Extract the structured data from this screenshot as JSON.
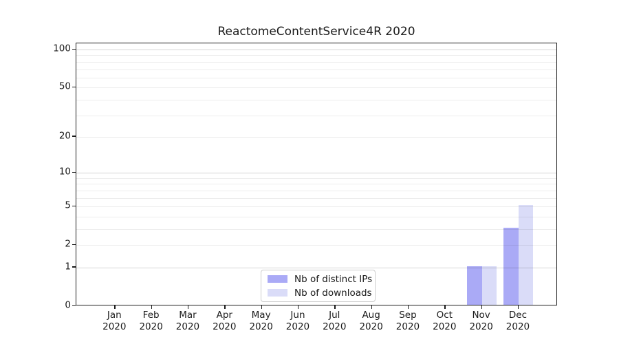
{
  "chart_data": {
    "type": "bar",
    "title": "ReactomeContentService4R 2020",
    "xlabel": "",
    "ylabel": "",
    "categories": [
      "Jan",
      "Feb",
      "Mar",
      "Apr",
      "May",
      "Jun",
      "Jul",
      "Aug",
      "Sep",
      "Oct",
      "Nov",
      "Dec"
    ],
    "category_year": "2020",
    "series": [
      {
        "name": "Nb of distinct IPs",
        "color": "#aaaaf6",
        "values": [
          0,
          0,
          0,
          0,
          0,
          0,
          0,
          0,
          0,
          0,
          1,
          3
        ]
      },
      {
        "name": "Nb of downloads",
        "color": "#dadcf8",
        "values": [
          0,
          0,
          0,
          0,
          0,
          0,
          0,
          0,
          0,
          0,
          1,
          5
        ]
      }
    ],
    "y_axis": {
      "scale": "log1p",
      "ylim": [
        0,
        112
      ],
      "ticks": [
        {
          "v": 0,
          "label": "0"
        },
        {
          "v": 1,
          "label": "1"
        },
        {
          "v": 2,
          "label": "2"
        },
        {
          "v": 5,
          "label": "5"
        },
        {
          "v": 10,
          "label": "10"
        },
        {
          "v": 20,
          "label": "20"
        },
        {
          "v": 50,
          "label": "50"
        },
        {
          "v": 100,
          "label": "100"
        }
      ],
      "major_gridlines": [
        1,
        10,
        100
      ],
      "minor_gridlines": [
        2,
        3,
        4,
        5,
        6,
        7,
        8,
        9,
        20,
        30,
        40,
        50,
        60,
        70,
        80,
        90
      ]
    },
    "grid": "horizontal",
    "legend": {
      "position": "lower center"
    }
  }
}
